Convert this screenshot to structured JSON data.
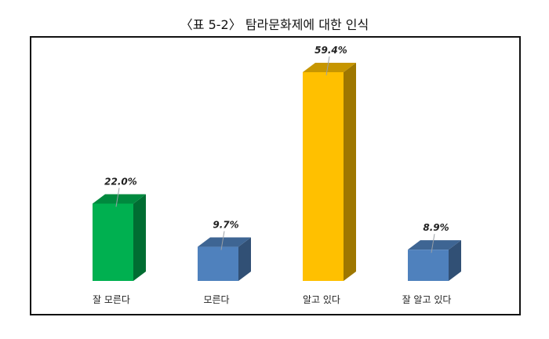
{
  "title": "〈표 5-2〉 탐라문화제에 대한 인식",
  "chart_data": {
    "type": "bar",
    "categories": [
      "잘 모른다",
      "모른다",
      "알고 있다",
      "잘 알고 있다"
    ],
    "values": [
      22.0,
      9.7,
      59.4,
      8.9
    ],
    "value_labels": [
      "22.0%",
      "9.7%",
      "59.4%",
      "8.9%"
    ],
    "colors": [
      "#00b050",
      "#4f81bd",
      "#ffc000",
      "#4f81bd"
    ],
    "title": "〈표 5-2〉 탐라문화제에 대한 인식",
    "xlabel": "",
    "ylabel": "",
    "ylim": [
      0,
      60
    ],
    "grid": false,
    "style": "3d-column"
  }
}
